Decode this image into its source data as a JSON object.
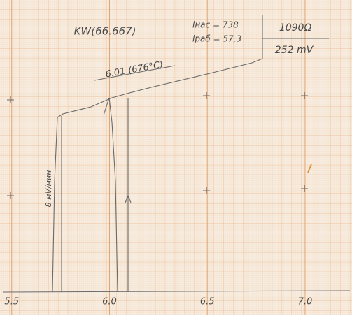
{
  "chart_data": {
    "type": "line",
    "title": "KW(66.667)",
    "annotations": {
      "peak": "6.01 (676°C)",
      "l_sat": "lнас = 738",
      "l_work": "lраб = 57,3",
      "resistance": "1090Ω",
      "voltage": "252 mV",
      "rate": "8 мV/мин"
    },
    "xlim": [
      5.44,
      7.24
    ],
    "xticks": [
      5.5,
      {
        "value": 6,
        "label": "6.0"
      },
      6.5,
      {
        "value": 7,
        "label": "7.0"
      }
    ],
    "grid": true
  }
}
